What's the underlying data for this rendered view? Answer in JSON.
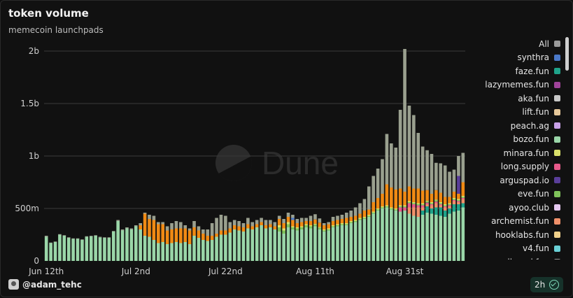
{
  "header": {
    "title": "token volume",
    "subtitle": "memecoin launchpads"
  },
  "footer": {
    "user": "@adam_tehc",
    "refresh": "2h"
  },
  "watermark": {
    "text": "Dune"
  },
  "chart_data": {
    "type": "bar",
    "stacked": true,
    "title": "token volume",
    "subtitle": "memecoin launchpads",
    "ylim": [
      0,
      2000000000
    ],
    "yticks": [
      "0",
      "500m",
      "1b",
      "1.5b",
      "2b"
    ],
    "ytick_values": [
      0,
      500000000,
      1000000000,
      1500000000,
      2000000000
    ],
    "xticks": [
      "Jun 12th",
      "Jul 2nd",
      "Jul 22nd",
      "Aug 11th",
      "Aug 31st"
    ],
    "xtick_index": [
      0,
      20,
      40,
      60,
      80
    ],
    "grid": "horizontal",
    "legend_position": "right",
    "legend": [
      {
        "name": "All",
        "color": "#9a9a9a"
      },
      {
        "name": "synthra",
        "color": "#4a78c8"
      },
      {
        "name": "faze.fun",
        "color": "#1fa38a"
      },
      {
        "name": "lazymemes.fun",
        "color": "#a0439a"
      },
      {
        "name": "aka.fun",
        "color": "#c8c8c8"
      },
      {
        "name": "lift.fun",
        "color": "#e6c89a"
      },
      {
        "name": "peach.ag",
        "color": "#c8a0e8"
      },
      {
        "name": "bozo.fun",
        "color": "#9ad6a8"
      },
      {
        "name": "minara.fun",
        "color": "#d9e06a"
      },
      {
        "name": "long.supply",
        "color": "#e85a8a"
      },
      {
        "name": "arguspad.io",
        "color": "#5a3e9a"
      },
      {
        "name": "eve.fun",
        "color": "#7fc25a"
      },
      {
        "name": "ayoo.club",
        "color": "#e6c8f0"
      },
      {
        "name": "archemist.fun",
        "color": "#f0906a"
      },
      {
        "name": "hooklabs.fun",
        "color": "#f0d08a"
      },
      {
        "name": "v4.fun",
        "color": "#6ad0d6"
      },
      {
        "name": "rallypad.fun",
        "color": "#9a9a9a"
      }
    ],
    "categories_count": 94,
    "series": [
      {
        "name": "bozo.fun",
        "color": "#9ad6a8",
        "values": [
          230000000,
          170000000,
          180000000,
          250000000,
          240000000,
          220000000,
          210000000,
          210000000,
          200000000,
          230000000,
          235000000,
          240000000,
          225000000,
          220000000,
          220000000,
          280000000,
          380000000,
          290000000,
          310000000,
          300000000,
          330000000,
          300000000,
          240000000,
          230000000,
          200000000,
          170000000,
          180000000,
          160000000,
          170000000,
          180000000,
          170000000,
          180000000,
          160000000,
          240000000,
          220000000,
          200000000,
          190000000,
          200000000,
          230000000,
          250000000,
          250000000,
          270000000,
          300000000,
          290000000,
          280000000,
          310000000,
          300000000,
          320000000,
          340000000,
          310000000,
          320000000,
          300000000,
          280000000,
          260000000,
          320000000,
          300000000,
          290000000,
          300000000,
          320000000,
          310000000,
          330000000,
          300000000,
          280000000,
          290000000,
          320000000,
          330000000,
          340000000,
          340000000,
          360000000,
          370000000,
          390000000,
          400000000,
          420000000,
          450000000,
          480000000,
          500000000,
          510000000,
          490000000,
          480000000,
          470000000,
          480000000,
          450000000,
          430000000,
          420000000,
          440000000,
          460000000,
          450000000,
          440000000,
          430000000,
          420000000,
          450000000,
          470000000,
          480000000,
          510000000
        ]
      },
      {
        "name": "faze.fun",
        "color": "#1fa38a",
        "values": [
          0,
          0,
          0,
          0,
          0,
          0,
          0,
          0,
          0,
          0,
          0,
          0,
          0,
          0,
          0,
          0,
          0,
          0,
          0,
          0,
          0,
          0,
          0,
          0,
          0,
          0,
          0,
          0,
          0,
          0,
          0,
          0,
          0,
          0,
          0,
          0,
          0,
          0,
          0,
          0,
          0,
          0,
          0,
          0,
          0,
          0,
          0,
          0,
          0,
          0,
          0,
          0,
          0,
          0,
          0,
          0,
          0,
          0,
          0,
          0,
          0,
          0,
          0,
          0,
          0,
          0,
          0,
          0,
          0,
          0,
          0,
          0,
          0,
          0,
          0,
          0,
          0,
          0,
          0,
          0,
          0,
          0,
          0,
          0,
          40000000,
          60000000,
          50000000,
          70000000,
          80000000,
          60000000,
          50000000,
          70000000,
          60000000,
          40000000
        ]
      },
      {
        "name": "archemist.fun",
        "color": "#f0906a",
        "values": [
          0,
          0,
          0,
          0,
          0,
          0,
          0,
          0,
          0,
          0,
          0,
          0,
          0,
          0,
          0,
          0,
          0,
          0,
          0,
          0,
          0,
          0,
          0,
          0,
          0,
          0,
          0,
          0,
          0,
          0,
          0,
          0,
          0,
          0,
          0,
          0,
          0,
          0,
          0,
          0,
          0,
          0,
          0,
          0,
          0,
          0,
          0,
          0,
          0,
          0,
          0,
          0,
          0,
          0,
          0,
          0,
          0,
          0,
          0,
          0,
          0,
          0,
          0,
          0,
          0,
          0,
          0,
          0,
          0,
          0,
          0,
          0,
          0,
          0,
          0,
          0,
          0,
          0,
          0,
          0,
          0,
          60000000,
          80000000,
          90000000,
          30000000,
          20000000,
          30000000,
          40000000,
          20000000,
          30000000,
          20000000,
          30000000,
          20000000,
          40000000
        ]
      },
      {
        "name": "long.supply",
        "color": "#e85a8a",
        "values": [
          0,
          0,
          0,
          0,
          0,
          0,
          0,
          0,
          0,
          0,
          0,
          0,
          0,
          0,
          0,
          0,
          0,
          0,
          0,
          0,
          0,
          0,
          0,
          0,
          0,
          0,
          0,
          0,
          0,
          0,
          0,
          0,
          0,
          0,
          0,
          0,
          0,
          0,
          0,
          0,
          0,
          0,
          0,
          0,
          0,
          0,
          0,
          0,
          0,
          0,
          0,
          0,
          0,
          0,
          0,
          0,
          0,
          0,
          0,
          0,
          0,
          0,
          0,
          0,
          0,
          0,
          0,
          0,
          0,
          0,
          0,
          0,
          0,
          0,
          0,
          0,
          0,
          0,
          0,
          40000000,
          30000000,
          40000000,
          30000000,
          20000000,
          20000000,
          15000000,
          10000000,
          15000000,
          10000000,
          10000000,
          10000000,
          10000000,
          10000000,
          10000000
        ]
      },
      {
        "name": "eve.fun",
        "color": "#7fc25a",
        "values": [
          0,
          0,
          0,
          0,
          0,
          0,
          0,
          0,
          0,
          0,
          0,
          0,
          0,
          0,
          0,
          0,
          0,
          0,
          0,
          0,
          0,
          0,
          0,
          0,
          0,
          0,
          0,
          0,
          0,
          0,
          0,
          0,
          0,
          0,
          0,
          0,
          0,
          0,
          0,
          0,
          0,
          0,
          0,
          0,
          0,
          0,
          0,
          0,
          0,
          0,
          0,
          0,
          40000000,
          30000000,
          30000000,
          20000000,
          20000000,
          20000000,
          20000000,
          20000000,
          15000000,
          15000000,
          10000000,
          10000000,
          10000000,
          10000000,
          10000000,
          10000000,
          10000000,
          10000000,
          10000000,
          10000000,
          10000000,
          10000000,
          10000000,
          10000000,
          10000000,
          10000000,
          10000000,
          10000000,
          10000000,
          10000000,
          10000000,
          10000000,
          10000000,
          10000000,
          10000000,
          10000000,
          10000000,
          10000000,
          10000000,
          10000000,
          10000000,
          10000000
        ]
      },
      {
        "name": "minara.fun",
        "color": "#d9e06a",
        "values": [
          0,
          0,
          0,
          0,
          0,
          0,
          0,
          0,
          0,
          0,
          0,
          0,
          0,
          0,
          0,
          0,
          0,
          0,
          0,
          0,
          0,
          0,
          0,
          0,
          0,
          0,
          0,
          0,
          0,
          0,
          0,
          0,
          0,
          0,
          0,
          0,
          0,
          0,
          0,
          0,
          0,
          0,
          0,
          0,
          0,
          0,
          0,
          0,
          0,
          0,
          0,
          0,
          20000000,
          20000000,
          20000000,
          10000000,
          10000000,
          10000000,
          10000000,
          10000000,
          10000000,
          10000000,
          10000000,
          10000000,
          10000000,
          10000000,
          10000000,
          10000000,
          10000000,
          10000000,
          10000000,
          10000000,
          10000000,
          10000000,
          10000000,
          10000000,
          10000000,
          10000000,
          10000000,
          10000000,
          10000000,
          10000000,
          10000000,
          10000000,
          10000000,
          10000000,
          10000000,
          10000000,
          10000000,
          10000000,
          10000000,
          10000000,
          10000000,
          10000000
        ]
      },
      {
        "name": "lift.fun",
        "color": "#f0900a",
        "values": [
          0,
          0,
          0,
          0,
          0,
          0,
          0,
          0,
          0,
          0,
          0,
          0,
          0,
          0,
          0,
          0,
          0,
          0,
          0,
          0,
          0,
          0,
          0,
          0,
          0,
          0,
          0,
          0,
          0,
          0,
          0,
          0,
          0,
          0,
          0,
          0,
          0,
          0,
          0,
          0,
          0,
          0,
          0,
          0,
          0,
          0,
          0,
          0,
          0,
          0,
          0,
          0,
          0,
          0,
          0,
          0,
          0,
          0,
          0,
          0,
          0,
          0,
          0,
          0,
          0,
          0,
          0,
          0,
          0,
          0,
          0,
          0,
          0,
          0,
          0,
          0,
          0,
          0,
          0,
          0,
          0,
          0,
          0,
          0,
          0,
          0,
          0,
          0,
          0,
          0,
          0,
          0,
          0,
          0
        ]
      },
      {
        "name": "hooklabs.fun",
        "color": "#f08a14",
        "values": [
          0,
          0,
          0,
          0,
          0,
          0,
          0,
          0,
          0,
          0,
          0,
          0,
          0,
          0,
          0,
          0,
          0,
          0,
          0,
          0,
          0,
          40000000,
          210000000,
          170000000,
          190000000,
          180000000,
          170000000,
          130000000,
          130000000,
          130000000,
          140000000,
          130000000,
          130000000,
          80000000,
          70000000,
          60000000,
          50000000,
          40000000,
          30000000,
          40000000,
          40000000,
          40000000,
          40000000,
          40000000,
          40000000,
          40000000,
          30000000,
          30000000,
          30000000,
          30000000,
          30000000,
          30000000,
          60000000,
          50000000,
          50000000,
          60000000,
          40000000,
          40000000,
          30000000,
          40000000,
          40000000,
          40000000,
          40000000,
          40000000,
          40000000,
          40000000,
          40000000,
          50000000,
          40000000,
          40000000,
          40000000,
          60000000,
          50000000,
          90000000,
          100000000,
          120000000,
          200000000,
          190000000,
          180000000,
          160000000,
          130000000,
          140000000,
          130000000,
          140000000,
          120000000,
          100000000,
          80000000,
          90000000,
          90000000,
          70000000,
          60000000,
          60000000,
          50000000,
          130000000
        ]
      },
      {
        "name": "arguspad.io",
        "color": "#5a3e9a",
        "values": [
          0,
          0,
          0,
          0,
          0,
          0,
          0,
          0,
          0,
          0,
          0,
          0,
          0,
          0,
          0,
          0,
          0,
          0,
          0,
          0,
          0,
          0,
          0,
          0,
          0,
          0,
          0,
          0,
          0,
          0,
          0,
          0,
          0,
          0,
          0,
          0,
          0,
          0,
          0,
          0,
          0,
          0,
          0,
          0,
          0,
          0,
          0,
          0,
          0,
          0,
          0,
          0,
          0,
          0,
          0,
          0,
          0,
          0,
          0,
          0,
          0,
          0,
          0,
          0,
          0,
          0,
          0,
          0,
          0,
          0,
          0,
          0,
          0,
          0,
          0,
          0,
          0,
          0,
          0,
          0,
          0,
          0,
          0,
          0,
          0,
          0,
          0,
          0,
          0,
          0,
          0,
          0,
          170000000,
          0
        ]
      },
      {
        "name": "synthra",
        "color": "#4a78c8",
        "values": [
          0,
          0,
          0,
          0,
          0,
          0,
          0,
          0,
          0,
          0,
          0,
          0,
          0,
          0,
          0,
          0,
          0,
          0,
          0,
          0,
          0,
          0,
          0,
          0,
          0,
          0,
          0,
          0,
          0,
          0,
          0,
          0,
          0,
          0,
          0,
          0,
          0,
          0,
          0,
          0,
          0,
          0,
          0,
          0,
          0,
          0,
          0,
          0,
          0,
          0,
          0,
          0,
          0,
          0,
          0,
          20000000,
          0,
          0,
          0,
          0,
          0,
          0,
          0,
          0,
          0,
          0,
          0,
          0,
          0,
          0,
          0,
          0,
          0,
          0,
          0,
          0,
          0,
          0,
          0,
          0,
          0,
          0,
          0,
          0,
          0,
          0,
          0,
          0,
          0,
          0,
          0,
          0,
          0,
          0
        ]
      },
      {
        "name": "rallypad.fun",
        "color": "#9aa08f",
        "values": [
          10000000,
          5000000,
          5000000,
          5000000,
          5000000,
          5000000,
          5000000,
          5000000,
          5000000,
          5000000,
          5000000,
          5000000,
          5000000,
          5000000,
          5000000,
          5000000,
          10000000,
          10000000,
          10000000,
          10000000,
          10000000,
          20000000,
          10000000,
          40000000,
          40000000,
          20000000,
          20000000,
          40000000,
          60000000,
          70000000,
          60000000,
          30000000,
          20000000,
          60000000,
          40000000,
          40000000,
          60000000,
          120000000,
          150000000,
          150000000,
          140000000,
          60000000,
          50000000,
          50000000,
          40000000,
          60000000,
          40000000,
          40000000,
          40000000,
          50000000,
          40000000,
          40000000,
          30000000,
          40000000,
          40000000,
          30000000,
          40000000,
          40000000,
          30000000,
          50000000,
          50000000,
          40000000,
          20000000,
          20000000,
          40000000,
          40000000,
          40000000,
          50000000,
          60000000,
          80000000,
          100000000,
          110000000,
          220000000,
          250000000,
          280000000,
          330000000,
          480000000,
          420000000,
          400000000,
          750000000,
          1360000000,
          770000000,
          700000000,
          530000000,
          420000000,
          380000000,
          380000000,
          260000000,
          280000000,
          300000000,
          240000000,
          210000000,
          190000000,
          280000000
        ]
      }
    ]
  }
}
